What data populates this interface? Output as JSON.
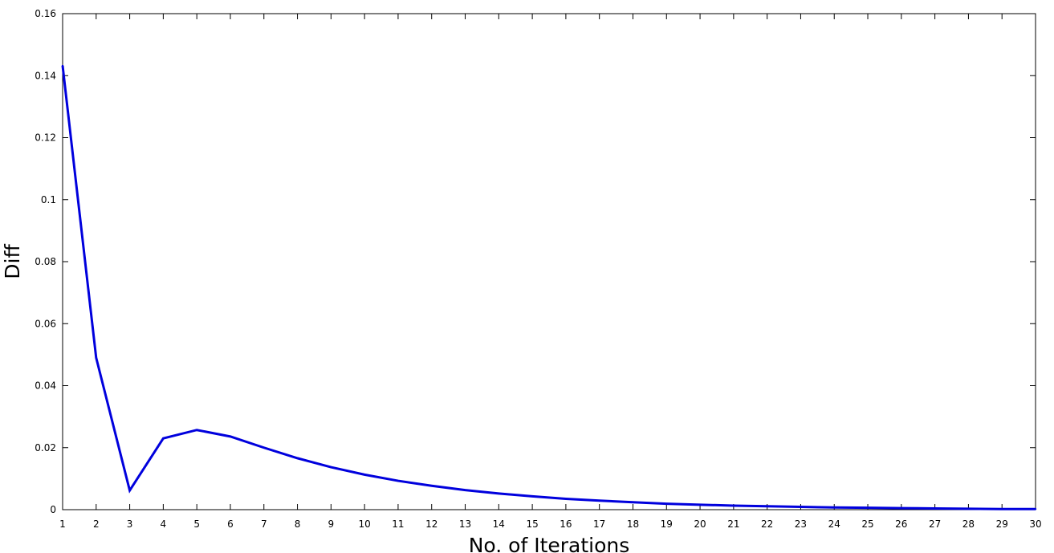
{
  "chart_data": {
    "type": "line",
    "title": "",
    "xlabel": "No. of Iterations",
    "ylabel": "Diff",
    "xlim": [
      1,
      30
    ],
    "ylim": [
      0,
      0.16
    ],
    "x_ticks": [
      1,
      2,
      3,
      4,
      5,
      6,
      7,
      8,
      9,
      10,
      11,
      12,
      13,
      14,
      15,
      16,
      17,
      18,
      19,
      20,
      21,
      22,
      23,
      24,
      25,
      26,
      27,
      28,
      29,
      30
    ],
    "y_ticks": [
      0,
      0.02,
      0.04,
      0.06,
      0.08,
      0.1,
      0.12,
      0.14,
      0.16
    ],
    "y_tick_labels": [
      "0",
      "0.02",
      "0.04",
      "0.06",
      "0.08",
      "0.1",
      "0.12",
      "0.14",
      "0.16"
    ],
    "grid": false,
    "legend": "none",
    "series": [
      {
        "color": "#0000dd",
        "x": [
          1,
          2,
          3,
          4,
          5,
          6,
          7,
          8,
          9,
          10,
          11,
          12,
          13,
          14,
          15,
          16,
          17,
          18,
          19,
          20,
          21,
          22,
          23,
          24,
          25,
          26,
          27,
          28,
          29,
          30
        ],
        "values": [
          0.1432,
          0.049,
          0.0062,
          0.023,
          0.0257,
          0.0236,
          0.02,
          0.0166,
          0.0137,
          0.0113,
          0.0093,
          0.0077,
          0.0063,
          0.0052,
          0.0043,
          0.0035,
          0.0029,
          0.0024,
          0.0019,
          0.0016,
          0.0013,
          0.0011,
          0.0009,
          0.0007,
          0.0006,
          0.0005,
          0.0004,
          0.0003,
          0.0002,
          0.0002
        ]
      }
    ]
  }
}
